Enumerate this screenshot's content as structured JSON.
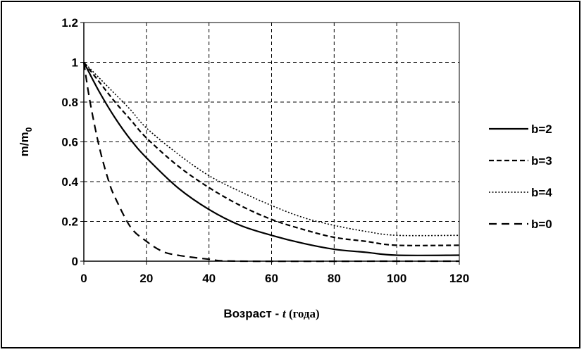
{
  "chart_data": {
    "type": "line",
    "xlabel": "Возраст - t (года)",
    "xlabel_parts": {
      "prefix": "Возраст - ",
      "var": "t",
      "suffix": " (года)"
    },
    "ylabel": "m/m0",
    "ylabel_parts": {
      "main": "m/m",
      "sub": "0"
    },
    "xlim": [
      0,
      120
    ],
    "ylim": [
      0,
      1.2
    ],
    "xticks": [
      "0",
      "20",
      "40",
      "60",
      "80",
      "100",
      "120"
    ],
    "yticks": [
      "0",
      "0.2",
      "0.4",
      "0.6",
      "0.8",
      "1",
      "1.2"
    ],
    "grid": true,
    "legend_position": "right",
    "series": [
      {
        "name": "b=2",
        "style": "solid",
        "x": [
          0,
          5,
          10,
          15,
          20,
          30,
          40,
          50,
          60,
          70,
          80,
          90,
          100,
          120
        ],
        "y": [
          1.0,
          0.85,
          0.72,
          0.61,
          0.52,
          0.37,
          0.26,
          0.18,
          0.13,
          0.09,
          0.06,
          0.045,
          0.03,
          0.03
        ]
      },
      {
        "name": "b=3",
        "style": "dashed",
        "x": [
          0,
          5,
          10,
          15,
          20,
          30,
          40,
          50,
          60,
          70,
          80,
          90,
          100,
          120
        ],
        "y": [
          1.0,
          0.9,
          0.8,
          0.71,
          0.62,
          0.48,
          0.37,
          0.28,
          0.21,
          0.16,
          0.12,
          0.1,
          0.08,
          0.08
        ]
      },
      {
        "name": "b=4",
        "style": "dotted",
        "x": [
          0,
          5,
          10,
          15,
          20,
          30,
          40,
          50,
          60,
          70,
          80,
          90,
          100,
          120
        ],
        "y": [
          1.0,
          0.92,
          0.84,
          0.76,
          0.67,
          0.54,
          0.43,
          0.35,
          0.28,
          0.22,
          0.18,
          0.15,
          0.13,
          0.13
        ]
      },
      {
        "name": "b=0",
        "style": "longdash",
        "x": [
          0,
          2,
          5,
          8,
          10,
          15,
          20,
          25,
          30,
          40,
          50,
          100,
          120
        ],
        "y": [
          1.0,
          0.8,
          0.57,
          0.4,
          0.32,
          0.17,
          0.1,
          0.05,
          0.03,
          0.01,
          0.0,
          0.0,
          0.0
        ]
      }
    ]
  }
}
